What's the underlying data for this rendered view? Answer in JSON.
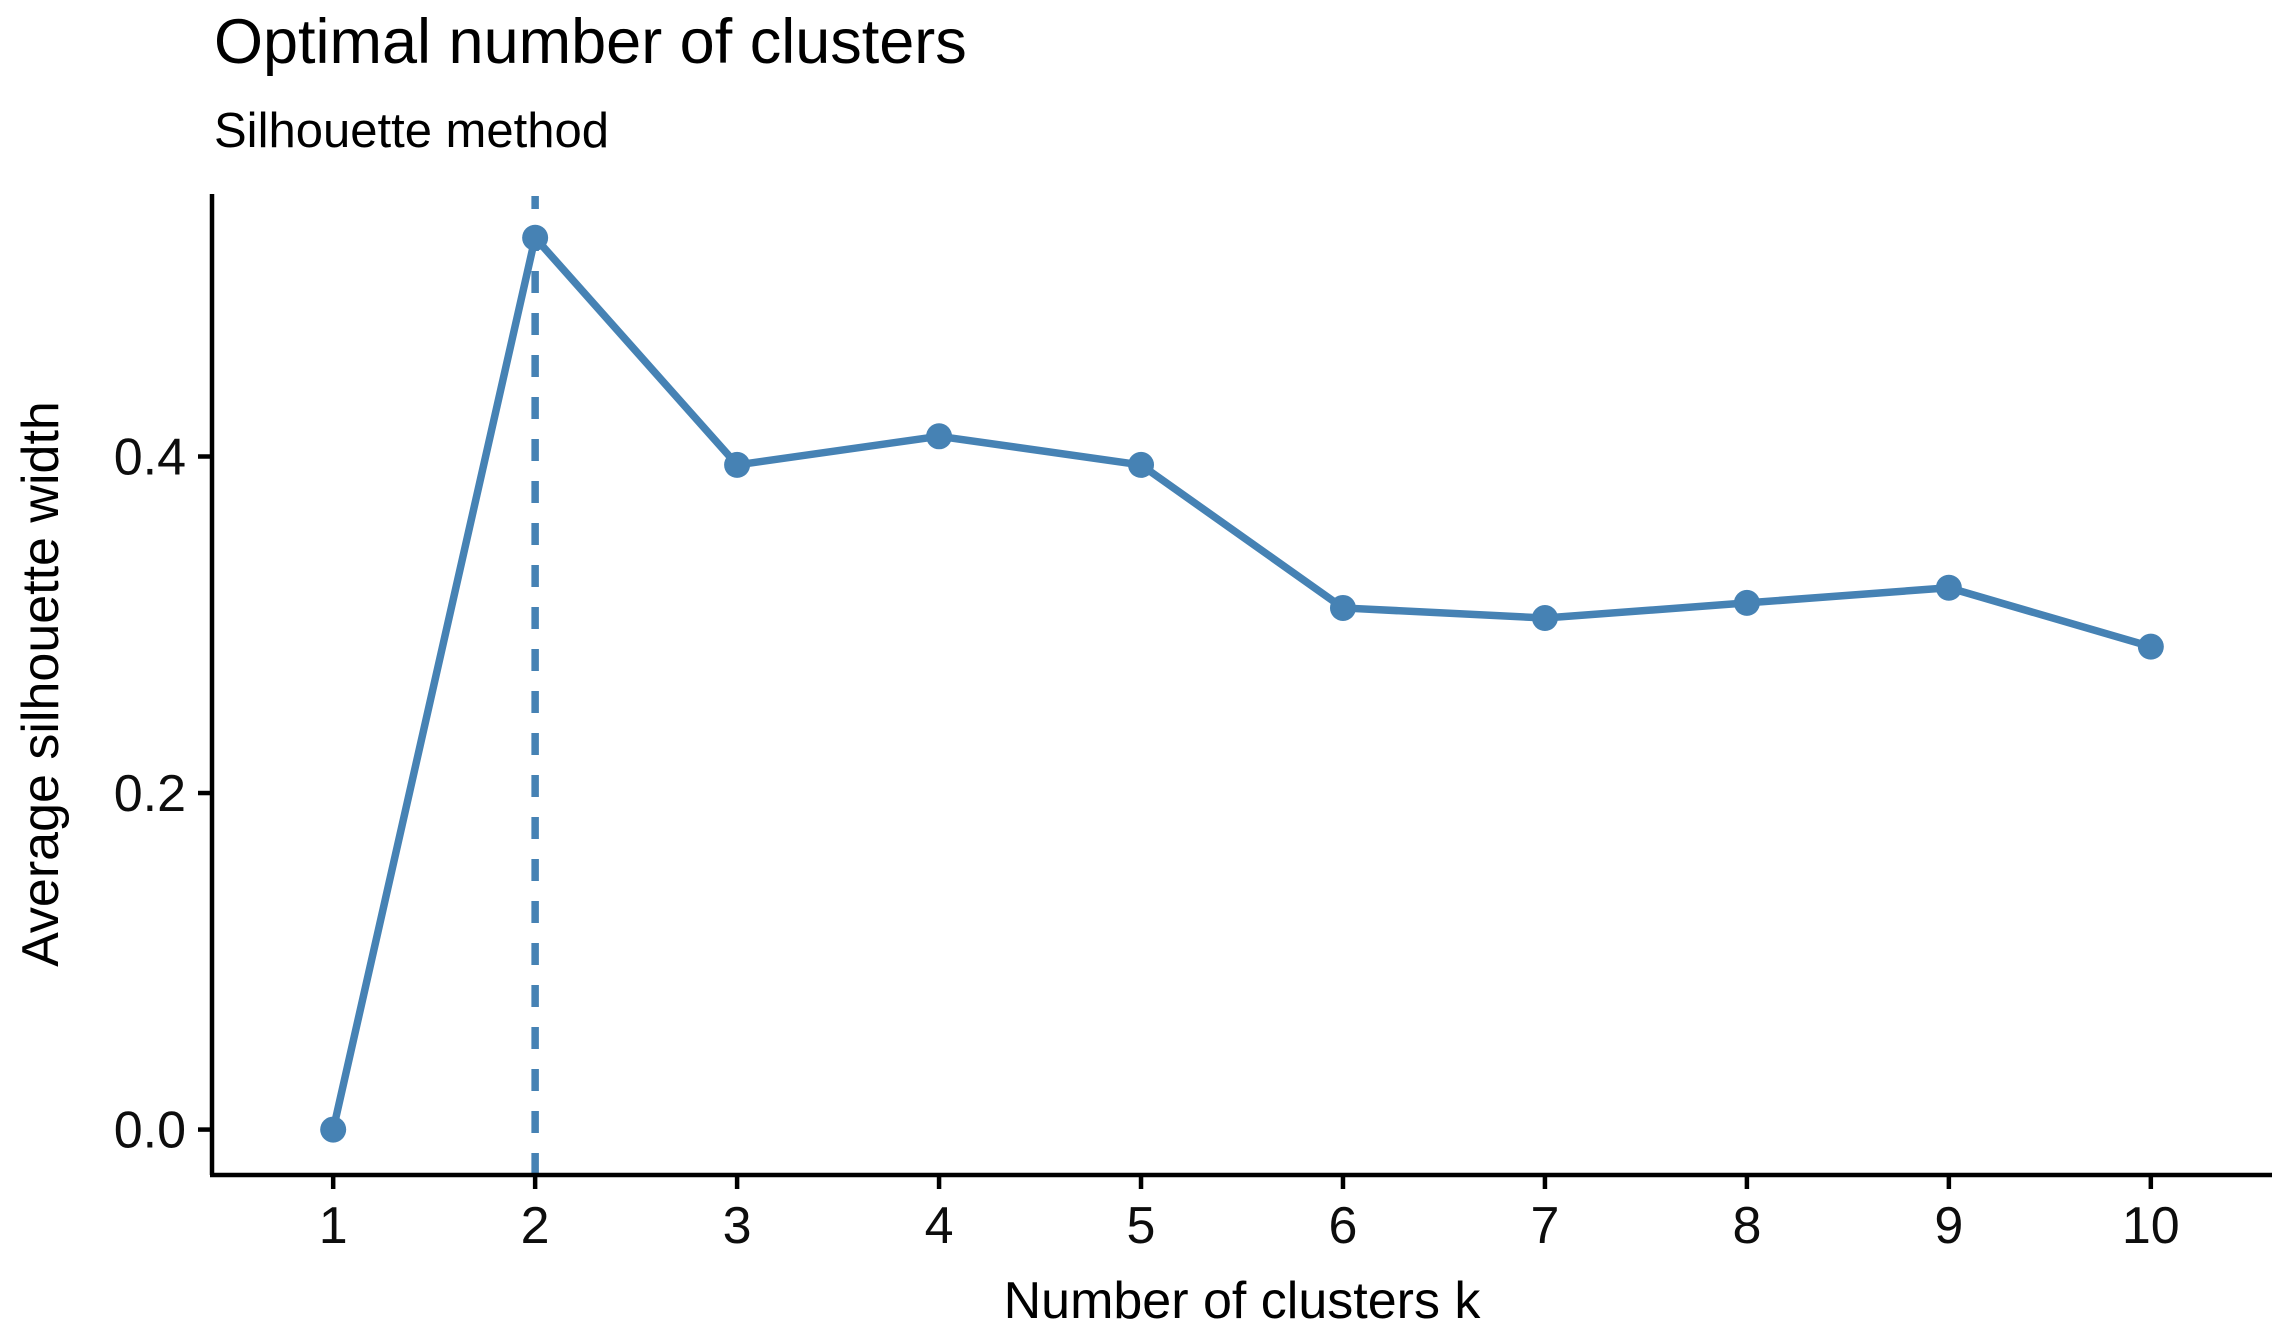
{
  "chart_data": {
    "type": "line",
    "title": "Optimal number of clusters",
    "subtitle": "Silhouette method",
    "xlabel": "Number of clusters k",
    "ylabel": "Average silhouette width",
    "series": [
      {
        "name": "average_silhouette_width",
        "x": [
          1,
          2,
          3,
          4,
          5,
          6,
          7,
          8,
          9,
          10
        ],
        "y": [
          0.0,
          0.53,
          0.395,
          0.412,
          0.395,
          0.31,
          0.304,
          0.313,
          0.322,
          0.287
        ]
      }
    ],
    "x_ticks": [
      1,
      2,
      3,
      4,
      5,
      6,
      7,
      8,
      9,
      10
    ],
    "x_tick_labels": [
      "1",
      "2",
      "3",
      "4",
      "5",
      "6",
      "7",
      "8",
      "9",
      "10"
    ],
    "y_ticks": [
      0.0,
      0.2,
      0.4
    ],
    "y_tick_labels": [
      "0.0",
      "0.2",
      "0.4"
    ],
    "xlim": [
      0.4,
      10.6
    ],
    "ylim": [
      -0.027,
      0.556
    ],
    "grid": false,
    "legend": "none",
    "optimal_k_vline": {
      "x": 2,
      "style": "dashed"
    },
    "colors": {
      "line": "#4682B4",
      "marker": "#4682B4",
      "vline": "#4682B4",
      "axis": "#000000",
      "text": "#000000"
    }
  }
}
